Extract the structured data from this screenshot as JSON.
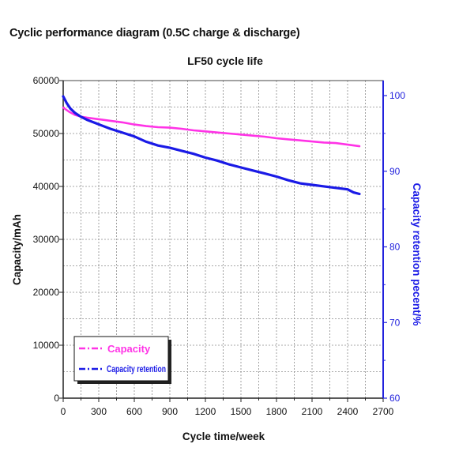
{
  "figure": {
    "heading": "Cyclic performance diagram (0.5C charge & discharge)"
  },
  "colors": {
    "capacity": "#ff33e6",
    "capacity_retention": "#1a1ae6",
    "axis_right": "#2222dd",
    "grid": "#8a8a8a"
  },
  "chart_data": {
    "type": "line",
    "title": "LF50 cycle life",
    "xlabel": "Cycle time/week",
    "ylabel": "Capacity/mAh",
    "y2label": "Capacity retention pecent/%",
    "xlim": [
      0,
      2700
    ],
    "ylim": [
      0,
      60000
    ],
    "y2lim": [
      60,
      102
    ],
    "x_ticks": [
      "0",
      "300",
      "600",
      "900",
      "1200",
      "1500",
      "1800",
      "2100",
      "2400",
      "2700"
    ],
    "y_ticks": [
      "0",
      "10000",
      "20000",
      "30000",
      "40000",
      "50000",
      "60000"
    ],
    "y2_ticks": [
      "60",
      "70",
      "80",
      "90",
      "100"
    ],
    "grid": true,
    "legend_position": "bottom-left",
    "series": [
      {
        "name": "Capacity",
        "axis": "left",
        "color": "#ff33e6",
        "x": [
          0,
          50,
          100,
          150,
          200,
          300,
          400,
          500,
          600,
          700,
          800,
          900,
          1000,
          1100,
          1200,
          1300,
          1400,
          1500,
          1600,
          1700,
          1800,
          1900,
          2000,
          2100,
          2200,
          2300,
          2400,
          2500
        ],
        "values": [
          54900,
          54100,
          53500,
          53200,
          53000,
          52700,
          52400,
          52100,
          51700,
          51400,
          51200,
          51100,
          50900,
          50600,
          50400,
          50200,
          50000,
          49800,
          49600,
          49400,
          49100,
          48900,
          48700,
          48500,
          48300,
          48200,
          47900,
          47600
        ]
      },
      {
        "name": "Capacity retention",
        "axis": "right",
        "color": "#1a1ae6",
        "x": [
          0,
          30,
          60,
          100,
          150,
          200,
          300,
          400,
          500,
          600,
          700,
          800,
          900,
          1000,
          1100,
          1200,
          1300,
          1400,
          1500,
          1600,
          1700,
          1800,
          1900,
          2000,
          2100,
          2200,
          2300,
          2400,
          2450,
          2500
        ],
        "values": [
          99.9,
          99.0,
          98.3,
          97.7,
          97.2,
          96.8,
          96.2,
          95.6,
          95.1,
          94.6,
          93.9,
          93.4,
          93.1,
          92.7,
          92.3,
          91.8,
          91.4,
          90.9,
          90.5,
          90.1,
          89.7,
          89.3,
          88.8,
          88.4,
          88.2,
          88.0,
          87.8,
          87.6,
          87.2,
          87.0
        ]
      }
    ]
  }
}
